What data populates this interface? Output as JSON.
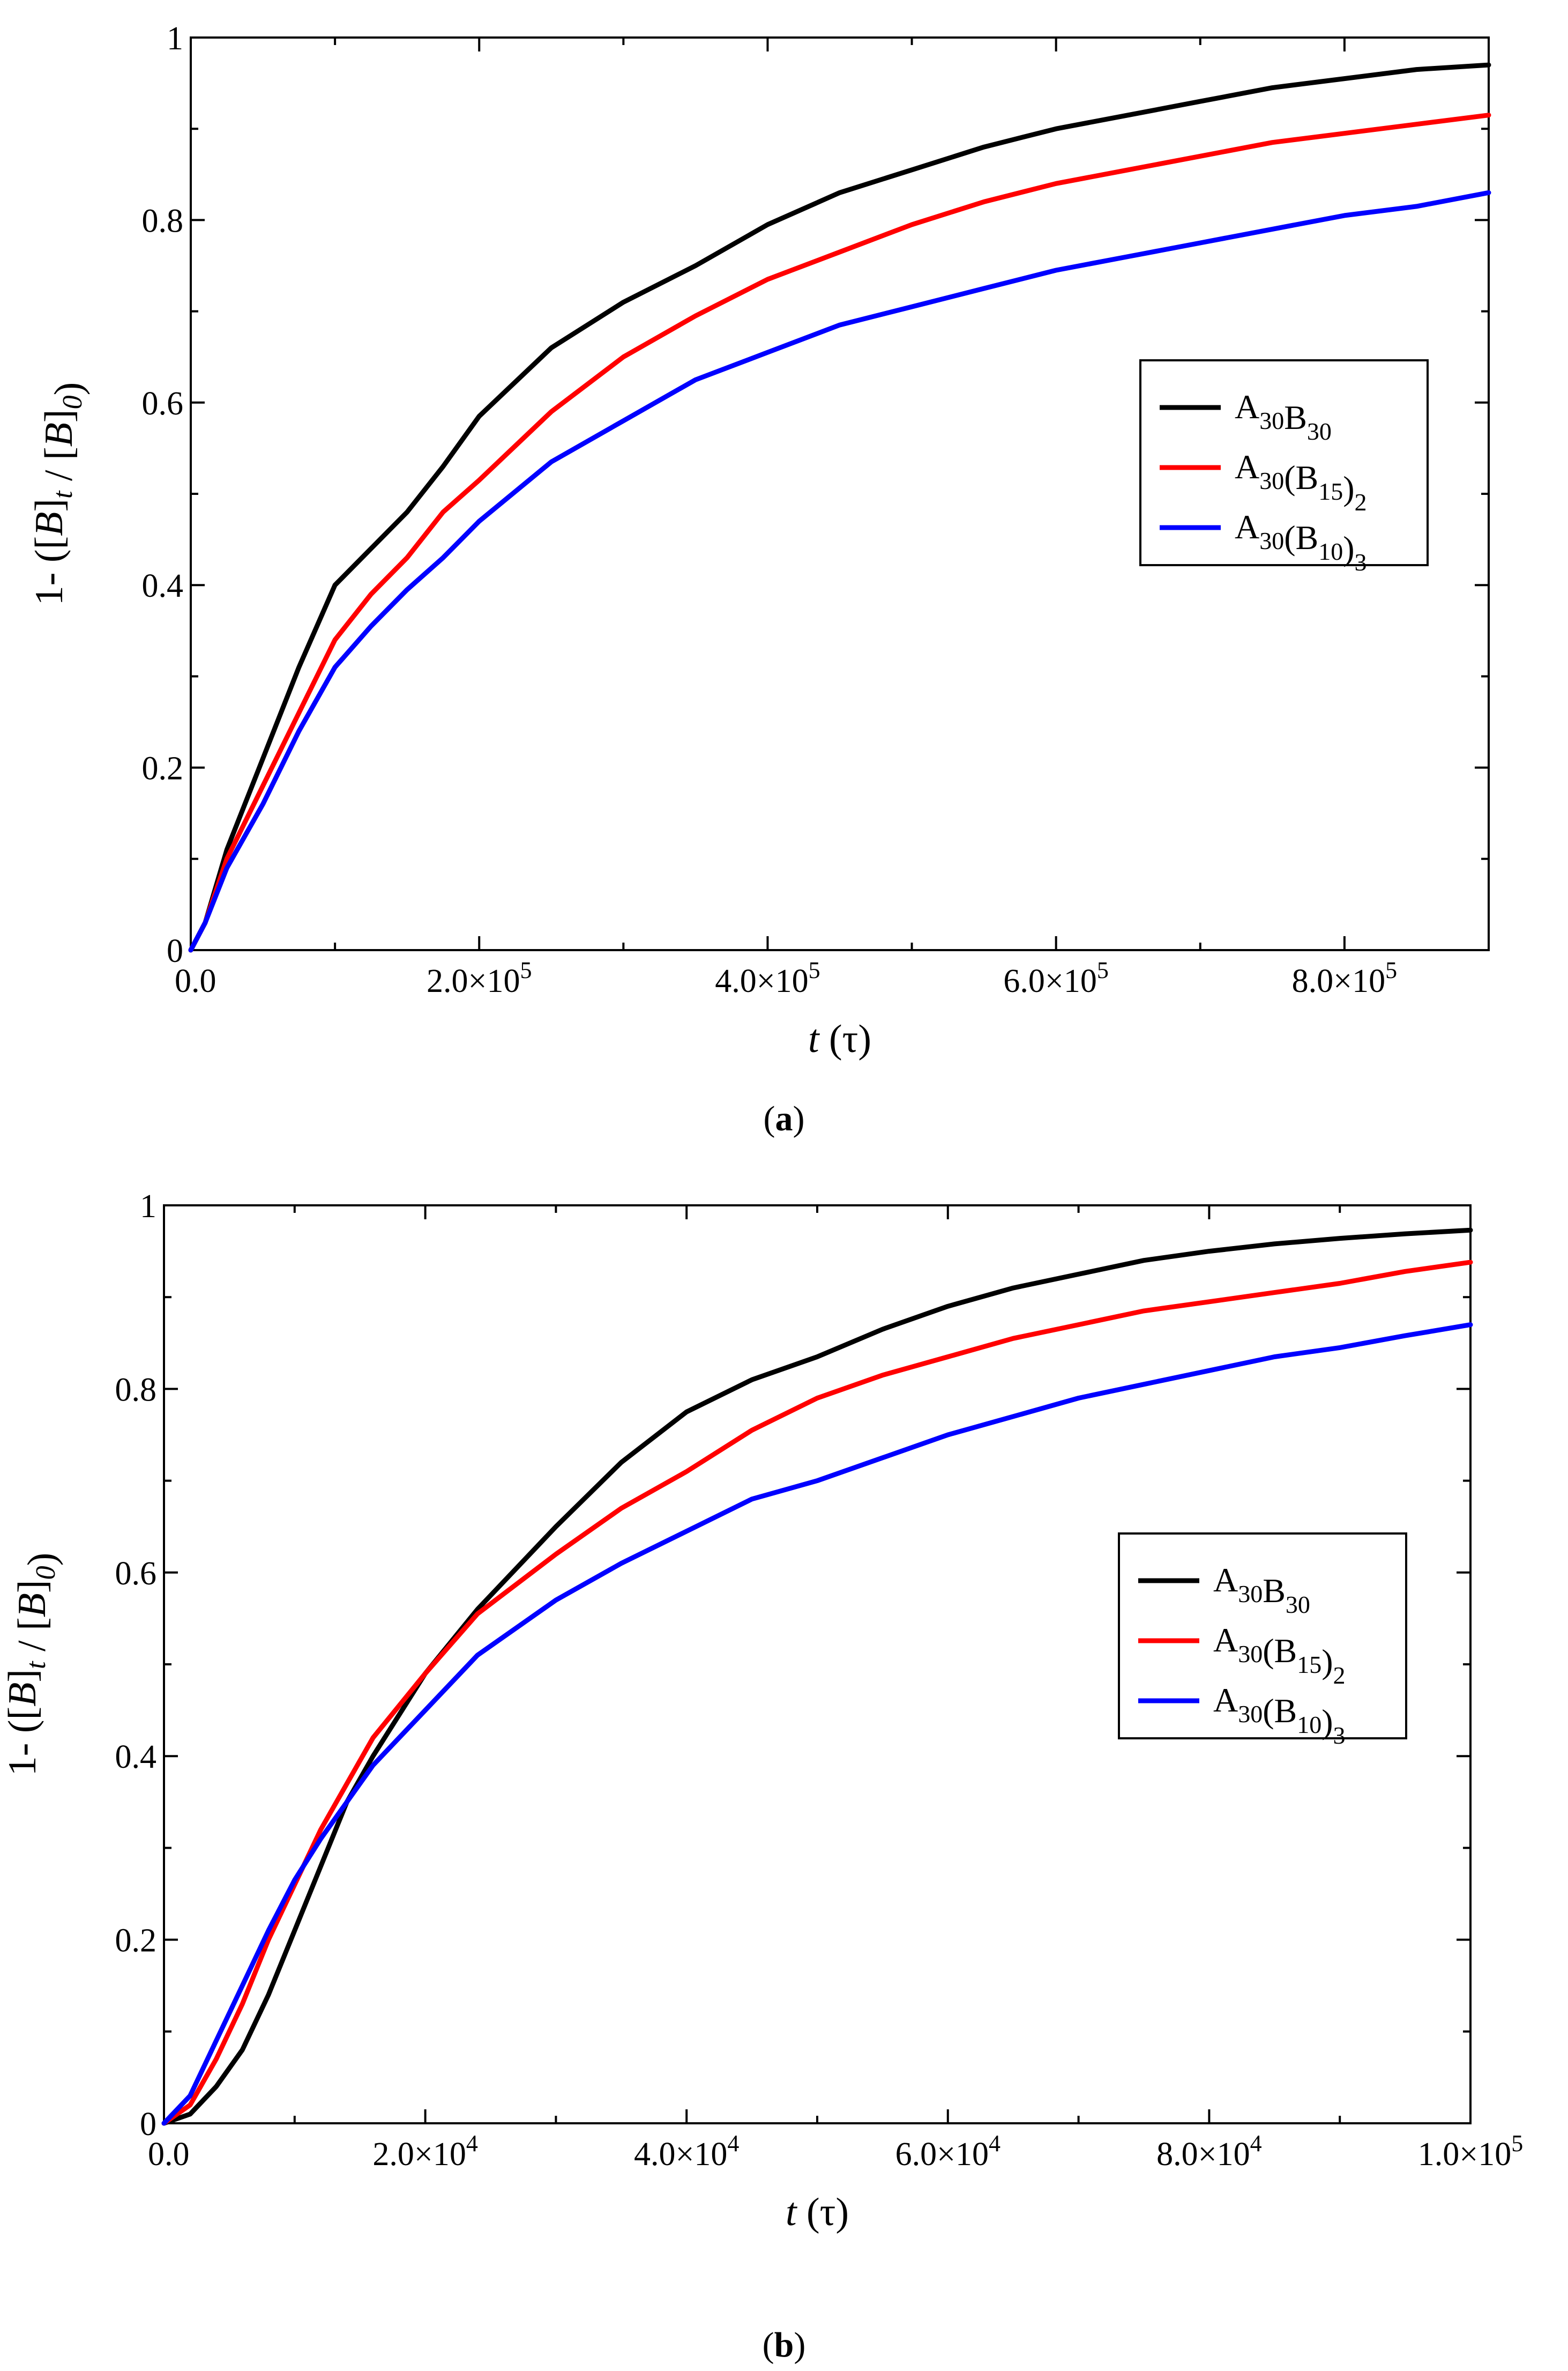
{
  "figure_a_caption": {
    "open": "(",
    "letter": "a",
    "close": ")"
  },
  "figure_b_caption": {
    "open": "(",
    "letter": "b",
    "close": ")"
  },
  "colors": {
    "black": "#000000",
    "red": "#ff0000",
    "blue": "#0000ff"
  },
  "chart_data": [
    {
      "id": "a",
      "type": "line",
      "xlabel": {
        "italic": "t",
        "rest": " (τ)"
      },
      "ylabel": "1- ([B]_t / [B]_0)",
      "xlim": [
        0,
        900000
      ],
      "ylim": [
        0,
        1
      ],
      "x_ticks": [
        {
          "value": 0,
          "label": "0.0",
          "exp": ""
        },
        {
          "value": 200000,
          "label": "2.0×10",
          "exp": "5"
        },
        {
          "value": 400000,
          "label": "4.0×10",
          "exp": "5"
        },
        {
          "value": 600000,
          "label": "6.0×10",
          "exp": "5"
        },
        {
          "value": 800000,
          "label": "8.0×10",
          "exp": "5"
        }
      ],
      "y_ticks": [
        {
          "value": 0,
          "label": "0"
        },
        {
          "value": 0.2,
          "label": "0.2"
        },
        {
          "value": 0.4,
          "label": "0.4"
        },
        {
          "value": 0.6,
          "label": "0.6"
        },
        {
          "value": 0.8,
          "label": "0.8"
        },
        {
          "value": 1,
          "label": "1"
        }
      ],
      "legend_position": "middle-right",
      "series": [
        {
          "name": "A30B30",
          "legend": [
            {
              "t": "A"
            },
            {
              "t": "30",
              "sub": true
            },
            {
              "t": "B"
            },
            {
              "t": "30",
              "sub": true
            }
          ],
          "color": "#000000",
          "x": [
            0,
            10000,
            25000,
            50000,
            75000,
            100000,
            125000,
            150000,
            175000,
            200000,
            250000,
            300000,
            350000,
            400000,
            450000,
            500000,
            550000,
            600000,
            650000,
            700000,
            750000,
            800000,
            850000,
            900000
          ],
          "y": [
            0,
            0.03,
            0.11,
            0.21,
            0.31,
            0.4,
            0.44,
            0.48,
            0.53,
            0.585,
            0.66,
            0.71,
            0.75,
            0.795,
            0.83,
            0.855,
            0.88,
            0.9,
            0.915,
            0.93,
            0.945,
            0.955,
            0.965,
            0.97
          ]
        },
        {
          "name": "A30(B15)2",
          "legend": [
            {
              "t": "A"
            },
            {
              "t": "30",
              "sub": true
            },
            {
              "t": "(B"
            },
            {
              "t": "15",
              "sub": true
            },
            {
              "t": ")"
            },
            {
              "t": "2",
              "sub": true
            }
          ],
          "color": "#ff0000",
          "x": [
            0,
            10000,
            25000,
            50000,
            75000,
            100000,
            125000,
            150000,
            175000,
            200000,
            250000,
            300000,
            350000,
            400000,
            450000,
            500000,
            550000,
            600000,
            650000,
            700000,
            750000,
            800000,
            850000,
            900000
          ],
          "y": [
            0,
            0.03,
            0.1,
            0.18,
            0.26,
            0.34,
            0.39,
            0.43,
            0.48,
            0.515,
            0.59,
            0.65,
            0.695,
            0.735,
            0.765,
            0.795,
            0.82,
            0.84,
            0.855,
            0.87,
            0.885,
            0.895,
            0.905,
            0.915
          ]
        },
        {
          "name": "A30(B10)3",
          "legend": [
            {
              "t": "A"
            },
            {
              "t": "30",
              "sub": true
            },
            {
              "t": "(B"
            },
            {
              "t": "10",
              "sub": true
            },
            {
              "t": ")"
            },
            {
              "t": "3",
              "sub": true
            }
          ],
          "color": "#0000ff",
          "x": [
            0,
            10000,
            25000,
            50000,
            75000,
            100000,
            125000,
            150000,
            175000,
            200000,
            250000,
            300000,
            350000,
            400000,
            450000,
            500000,
            550000,
            600000,
            650000,
            700000,
            750000,
            800000,
            850000,
            900000
          ],
          "y": [
            0,
            0.03,
            0.09,
            0.16,
            0.24,
            0.31,
            0.355,
            0.395,
            0.43,
            0.47,
            0.535,
            0.58,
            0.625,
            0.655,
            0.685,
            0.705,
            0.725,
            0.745,
            0.76,
            0.775,
            0.79,
            0.805,
            0.815,
            0.83
          ]
        }
      ]
    },
    {
      "id": "b",
      "type": "line",
      "xlabel": {
        "italic": "t",
        "rest": " (τ)"
      },
      "ylabel": "1- ([B]_t / [B]_0)",
      "xlim": [
        0,
        100000
      ],
      "ylim": [
        0,
        1
      ],
      "x_ticks": [
        {
          "value": 0,
          "label": "0.0",
          "exp": ""
        },
        {
          "value": 20000,
          "label": "2.0×10",
          "exp": "4"
        },
        {
          "value": 40000,
          "label": "4.0×10",
          "exp": "4"
        },
        {
          "value": 60000,
          "label": "6.0×10",
          "exp": "4"
        },
        {
          "value": 80000,
          "label": "8.0×10",
          "exp": "4"
        },
        {
          "value": 100000,
          "label": "1.0×10",
          "exp": "5"
        }
      ],
      "y_ticks": [
        {
          "value": 0,
          "label": "0"
        },
        {
          "value": 0.2,
          "label": "0.2"
        },
        {
          "value": 0.4,
          "label": "0.4"
        },
        {
          "value": 0.6,
          "label": "0.6"
        },
        {
          "value": 0.8,
          "label": "0.8"
        },
        {
          "value": 1,
          "label": "1"
        }
      ],
      "legend_position": "middle-right",
      "series": [
        {
          "name": "A30B30",
          "legend": [
            {
              "t": "A"
            },
            {
              "t": "30",
              "sub": true
            },
            {
              "t": "B"
            },
            {
              "t": "30",
              "sub": true
            }
          ],
          "color": "#000000",
          "x": [
            0,
            2000,
            4000,
            6000,
            8000,
            10000,
            12000,
            14000,
            16000,
            20000,
            24000,
            30000,
            35000,
            40000,
            45000,
            50000,
            55000,
            60000,
            65000,
            70000,
            75000,
            80000,
            85000,
            90000,
            95000,
            100000
          ],
          "y": [
            0,
            0.01,
            0.04,
            0.08,
            0.14,
            0.21,
            0.28,
            0.35,
            0.4,
            0.49,
            0.56,
            0.65,
            0.72,
            0.775,
            0.81,
            0.835,
            0.865,
            0.89,
            0.91,
            0.925,
            0.94,
            0.95,
            0.958,
            0.964,
            0.969,
            0.973
          ]
        },
        {
          "name": "A30(B15)2",
          "legend": [
            {
              "t": "A"
            },
            {
              "t": "30",
              "sub": true
            },
            {
              "t": "(B"
            },
            {
              "t": "15",
              "sub": true
            },
            {
              "t": ")"
            },
            {
              "t": "2",
              "sub": true
            }
          ],
          "color": "#ff0000",
          "x": [
            0,
            2000,
            4000,
            6000,
            8000,
            10000,
            12000,
            14000,
            16000,
            20000,
            24000,
            30000,
            35000,
            40000,
            45000,
            50000,
            55000,
            60000,
            65000,
            70000,
            75000,
            80000,
            85000,
            90000,
            95000,
            100000
          ],
          "y": [
            0,
            0.02,
            0.07,
            0.13,
            0.2,
            0.26,
            0.32,
            0.37,
            0.42,
            0.49,
            0.555,
            0.62,
            0.67,
            0.71,
            0.755,
            0.79,
            0.815,
            0.835,
            0.855,
            0.87,
            0.885,
            0.895,
            0.905,
            0.915,
            0.928,
            0.938
          ]
        },
        {
          "name": "A30(B10)3",
          "legend": [
            {
              "t": "A"
            },
            {
              "t": "30",
              "sub": true
            },
            {
              "t": "(B"
            },
            {
              "t": "10",
              "sub": true
            },
            {
              "t": ")"
            },
            {
              "t": "3",
              "sub": true
            }
          ],
          "color": "#0000ff",
          "x": [
            0,
            2000,
            4000,
            6000,
            8000,
            10000,
            12000,
            14000,
            16000,
            20000,
            24000,
            30000,
            35000,
            40000,
            45000,
            50000,
            55000,
            60000,
            65000,
            70000,
            75000,
            80000,
            85000,
            90000,
            95000,
            100000
          ],
          "y": [
            0,
            0.03,
            0.09,
            0.15,
            0.21,
            0.265,
            0.31,
            0.35,
            0.39,
            0.45,
            0.51,
            0.57,
            0.61,
            0.645,
            0.68,
            0.7,
            0.725,
            0.75,
            0.77,
            0.79,
            0.805,
            0.82,
            0.835,
            0.845,
            0.858,
            0.87
          ]
        }
      ]
    }
  ]
}
